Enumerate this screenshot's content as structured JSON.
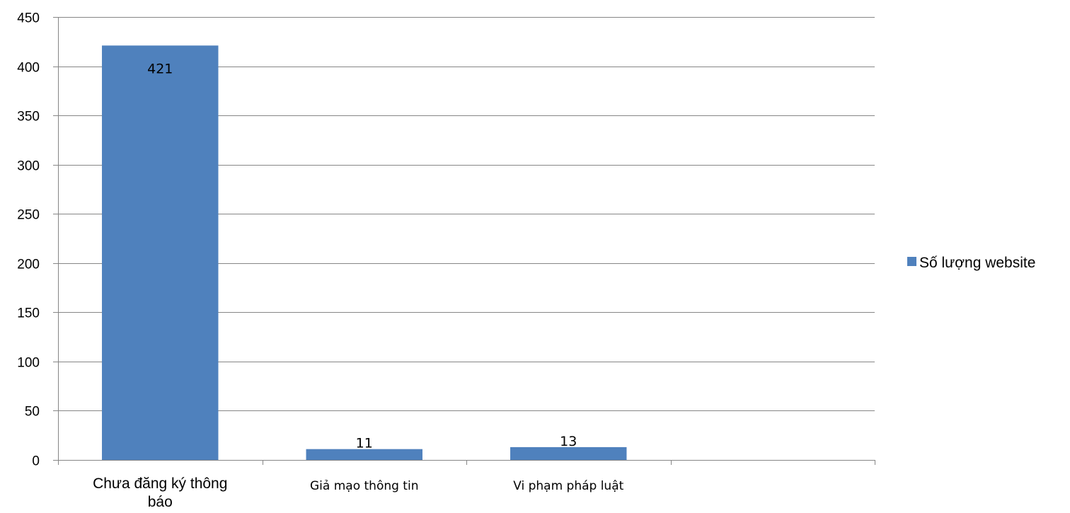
{
  "chart_data": {
    "type": "bar",
    "categories": [
      "Chưa đăng ký thông báo",
      "Giả mạo thông tin",
      "Vi phạm pháp luật",
      ""
    ],
    "series": [
      {
        "name": "Số lượng website",
        "values": [
          421,
          11,
          13,
          null
        ]
      }
    ],
    "data_labels": [
      "421",
      "11",
      "13"
    ],
    "ylim": [
      0,
      450
    ],
    "yticks": [
      0,
      50,
      100,
      150,
      200,
      250,
      300,
      350,
      400,
      450
    ],
    "grid": true,
    "legend_position": "right",
    "colors": {
      "bar": "#4f81bd",
      "grid": "#868686",
      "axis": "#868686"
    }
  }
}
